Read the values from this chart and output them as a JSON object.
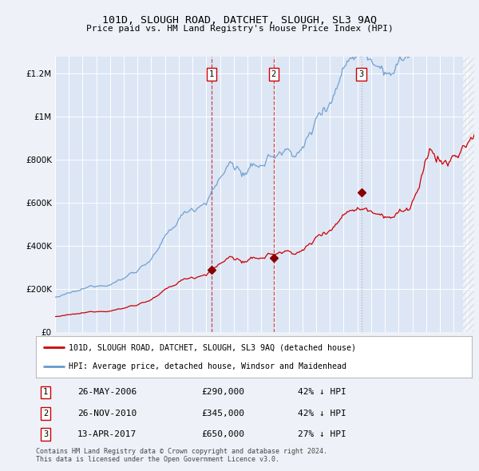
{
  "title": "101D, SLOUGH ROAD, DATCHET, SLOUGH, SL3 9AQ",
  "subtitle": "Price paid vs. HM Land Registry's House Price Index (HPI)",
  "legend_red": "101D, SLOUGH ROAD, DATCHET, SLOUGH, SL3 9AQ (detached house)",
  "legend_blue": "HPI: Average price, detached house, Windsor and Maidenhead",
  "footnote1": "Contains HM Land Registry data © Crown copyright and database right 2024.",
  "footnote2": "This data is licensed under the Open Government Licence v3.0.",
  "transactions": [
    {
      "label": "1",
      "date": "26-MAY-2006",
      "price": 290000,
      "pct": "42%",
      "dir": "↓",
      "x_year": 2006.38
    },
    {
      "label": "2",
      "date": "26-NOV-2010",
      "price": 345000,
      "pct": "42%",
      "dir": "↓",
      "x_year": 2010.9
    },
    {
      "label": "3",
      "date": "13-APR-2017",
      "price": 650000,
      "pct": "27%",
      "dir": "↓",
      "x_year": 2017.28
    }
  ],
  "ylim": [
    0,
    1280000
  ],
  "xlim_start": 1995.0,
  "xlim_end": 2025.5,
  "background_color": "#eef2f8",
  "plot_bg": "#dde6f5",
  "grid_color": "#ffffff",
  "red_line_color": "#cc0000",
  "blue_line_color": "#6699cc",
  "vline_red_color": "#cc3333",
  "vline_gray_color": "#aaaaaa",
  "marker_color": "#880000",
  "hatch_x_start": 2024.7
}
